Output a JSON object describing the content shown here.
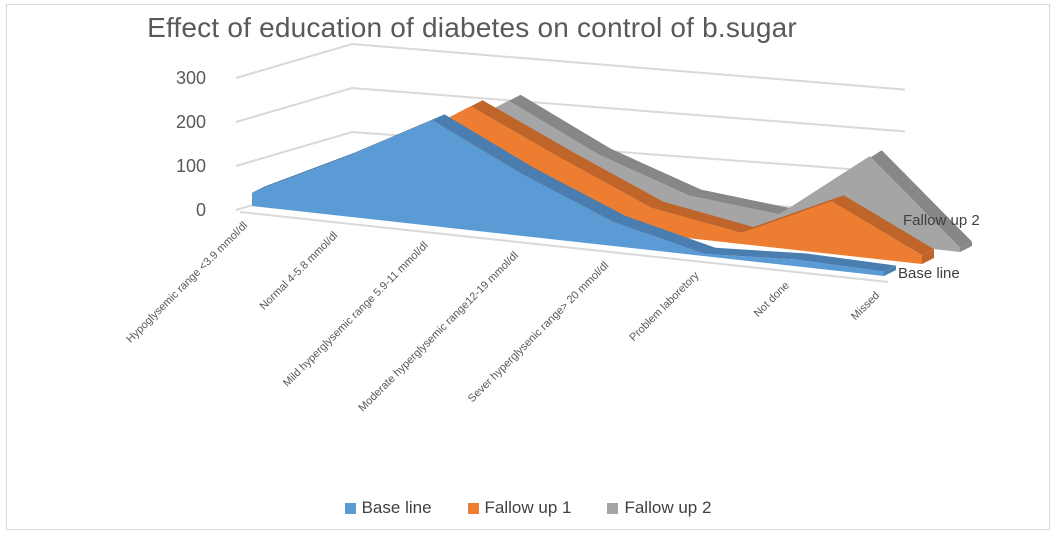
{
  "chart_data": {
    "type": "area",
    "subtype": "3d-area",
    "title": "Effect of education of diabetes on control of b.sugar",
    "xlabel": "",
    "ylabel": "",
    "ylim": [
      0,
      300
    ],
    "yticks": [
      "0",
      "100",
      "200",
      "300"
    ],
    "grid": true,
    "categories": [
      "Hypoglysemic range <3.9 mmol/dl",
      "Normal 4-5.8 mmol/dl",
      "Mild hyperglysemic range 5.9-11 mmol/dl",
      "Moderate hyperglysemic range12-19 mmol/dl",
      "Sever hyperglysenic range> 20 mmol/dl",
      "Problem laboretory",
      "Not done",
      "Missed"
    ],
    "series": [
      {
        "name": "Base line",
        "color": "#5B9BD5",
        "side_color": "#4A7EB0",
        "values": [
          30,
          130,
          240,
          140,
          55,
          5,
          15,
          10
        ]
      },
      {
        "name": "Fallow up 1",
        "color": "#ED7D31",
        "side_color": "#C0652A",
        "values": [
          20,
          115,
          245,
          150,
          60,
          25,
          120,
          20
        ]
      },
      {
        "name": "Fallow up 2",
        "color": "#A5A5A5",
        "side_color": "#878787",
        "values": [
          15,
          100,
          230,
          130,
          60,
          40,
          195,
          10
        ]
      }
    ],
    "series_labels_shown": [
      "Fallow up 2",
      "Base line"
    ],
    "legend_position": "bottom"
  }
}
